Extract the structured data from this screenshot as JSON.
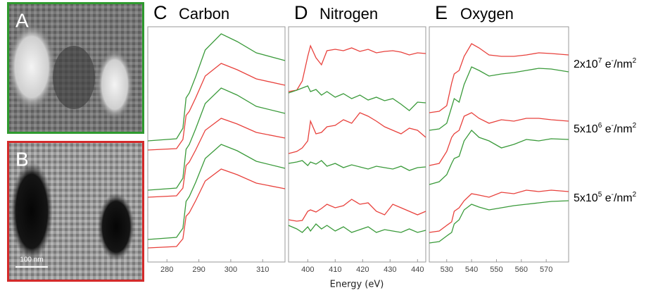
{
  "images": [
    {
      "label": "A",
      "color": "#2e9a2e"
    },
    {
      "label": "B",
      "color": "#d42a2a",
      "scale_bar": "100 nm"
    }
  ],
  "x_label": "Energy (eV)",
  "dose_labels": [
    [
      {
        "text": "2x10"
      },
      {
        "text": "7",
        "sup": true
      },
      {
        "text": " e"
      },
      {
        "text": "-",
        "sup": true
      },
      {
        "text": "/nm"
      },
      {
        "text": "2",
        "sup": true
      }
    ],
    [
      {
        "text": "5x10"
      },
      {
        "text": "6",
        "sup": true
      },
      {
        "text": " e"
      },
      {
        "text": "-",
        "sup": true
      },
      {
        "text": "/nm"
      },
      {
        "text": "2",
        "sup": true
      }
    ],
    [
      {
        "text": "5x10"
      },
      {
        "text": "5",
        "sup": true
      },
      {
        "text": " e"
      },
      {
        "text": "-",
        "sup": true
      },
      {
        "text": "/nm"
      },
      {
        "text": "2",
        "sup": true
      }
    ]
  ],
  "chart_data": [
    {
      "type": "line",
      "letter": "C",
      "title": "Carbon",
      "xlim": [
        274,
        317
      ],
      "xticks": [
        280,
        290,
        300,
        310
      ],
      "ylim": [
        0,
        33.4
      ],
      "x": [
        274,
        283,
        285,
        286,
        287,
        289,
        292,
        297,
        302,
        308,
        317
      ],
      "series": [
        {
          "color": "#3a9a3a",
          "values": [
            17.2,
            17.5,
            19,
            23.3,
            24,
            26.3,
            30.1,
            32.4,
            31.3,
            29.7,
            28.6
          ]
        },
        {
          "color": "#e8413c",
          "values": [
            15.9,
            16.1,
            17.4,
            20.8,
            21.4,
            23.3,
            26.4,
            28.2,
            27.3,
            26,
            25.1
          ]
        },
        {
          "color": "#3a9a3a",
          "values": [
            10.2,
            10.5,
            11.9,
            16,
            16.7,
            18.9,
            22.5,
            24.7,
            23.7,
            22.1,
            21.1
          ]
        },
        {
          "color": "#e8413c",
          "values": [
            9.2,
            9.4,
            10.5,
            13.7,
            14.2,
            15.9,
            18.7,
            20.4,
            19.6,
            18.4,
            17.6
          ]
        },
        {
          "color": "#3a9a3a",
          "values": [
            3.2,
            3.5,
            4.8,
            8.6,
            9.3,
            11.3,
            14.7,
            16.7,
            15.8,
            14.3,
            13.3
          ]
        },
        {
          "color": "#e8413c",
          "values": [
            2,
            2.2,
            3.3,
            6.5,
            7,
            8.7,
            11.5,
            13.2,
            12.4,
            11.2,
            10.4
          ]
        }
      ]
    },
    {
      "type": "line",
      "letter": "D",
      "title": "Nitrogen",
      "xlim": [
        393,
        443
      ],
      "xticks": [
        400,
        410,
        420,
        430,
        440
      ],
      "ylim": [
        0,
        33.4
      ],
      "x": [
        393,
        396,
        398,
        400,
        401,
        403,
        405,
        407,
        410,
        413,
        416,
        419,
        422,
        425,
        428,
        431,
        434,
        437,
        440,
        443
      ],
      "series": [
        {
          "color": "#e8413c",
          "values": [
            24.2,
            24.4,
            25.7,
            29.2,
            30.7,
            29,
            28,
            30,
            30.2,
            30,
            30.4,
            29.9,
            30.2,
            29.7,
            29.9,
            30,
            29.8,
            29.4,
            29.7,
            29.6
          ]
        },
        {
          "color": "#3a9a3a",
          "values": [
            24,
            24.4,
            24.7,
            25,
            24.2,
            24.5,
            23.7,
            24.2,
            23.4,
            23.9,
            23.2,
            23.7,
            23,
            23.4,
            22.9,
            23.2,
            22.4,
            21.5,
            22.7,
            22.6
          ]
        },
        {
          "color": "#e8413c",
          "values": [
            15.4,
            15.7,
            16.2,
            17.2,
            20,
            18.2,
            18.4,
            19.2,
            19.4,
            20.2,
            19.7,
            21.2,
            20.7,
            20,
            19.2,
            18.7,
            18.2,
            19,
            18.7,
            17.7
          ]
        },
        {
          "color": "#3a9a3a",
          "values": [
            14,
            14.2,
            14.4,
            13.7,
            14.2,
            13.9,
            14.4,
            13.6,
            14,
            13.4,
            13.8,
            13.5,
            13.2,
            13.6,
            13.4,
            13.2,
            13.6,
            13,
            13.4,
            13.5
          ]
        },
        {
          "color": "#e8413c",
          "values": [
            6,
            5.8,
            5.9,
            7.2,
            7.4,
            7.1,
            7.6,
            8.2,
            7.7,
            8,
            8.9,
            8.2,
            8.4,
            7.2,
            6.7,
            8.2,
            7.7,
            7.2,
            6.7,
            7.2
          ]
        },
        {
          "color": "#3a9a3a",
          "values": [
            5.2,
            4.7,
            4.2,
            5,
            4.4,
            5.4,
            4.7,
            5.2,
            4.4,
            5,
            4.2,
            4.6,
            5,
            4.2,
            4.6,
            4.4,
            4.2,
            4.7,
            4.2,
            4.5
          ]
        }
      ]
    },
    {
      "type": "line",
      "letter": "E",
      "title": "Oxygen",
      "xlim": [
        523,
        579
      ],
      "xticks": [
        530,
        540,
        550,
        560,
        570
      ],
      "ylim": [
        0,
        33.4
      ],
      "x": [
        523,
        527,
        530,
        532,
        533,
        535,
        537,
        540,
        543,
        547,
        552,
        557,
        562,
        567,
        572,
        579
      ],
      "series": [
        {
          "color": "#e8413c",
          "values": [
            21.2,
            21.4,
            22.2,
            25.4,
            26.7,
            27.2,
            29.2,
            31,
            30.4,
            29.4,
            29.2,
            29.2,
            29.4,
            29.7,
            29.6,
            29.4
          ]
        },
        {
          "color": "#3a9a3a",
          "values": [
            18.7,
            18.9,
            19.7,
            22,
            23.2,
            22.7,
            25.2,
            27.7,
            27.2,
            26.4,
            26.7,
            26.9,
            27.2,
            27.5,
            27.4,
            27
          ]
        },
        {
          "color": "#e8413c",
          "values": [
            13.7,
            14,
            15.7,
            17.7,
            18.2,
            18.7,
            20.7,
            21.2,
            20.4,
            19.7,
            20.2,
            20,
            20.4,
            20.4,
            20.2,
            20
          ]
        },
        {
          "color": "#3a9a3a",
          "values": [
            11,
            11.4,
            12.4,
            14,
            14.7,
            15,
            17.2,
            18.7,
            17.7,
            17.2,
            16.2,
            16.7,
            17.4,
            17.2,
            17.5,
            17.4
          ]
        },
        {
          "color": "#e8413c",
          "values": [
            4.2,
            4.4,
            5.2,
            5.7,
            7.2,
            7.7,
            8.7,
            9.7,
            9.5,
            9.2,
            9.9,
            9.7,
            10.2,
            10,
            10.2,
            10
          ]
        },
        {
          "color": "#3a9a3a",
          "values": [
            2.7,
            2.9,
            3.7,
            4.2,
            5.4,
            6,
            7.4,
            8.2,
            7.8,
            7.4,
            7.7,
            8,
            8.2,
            8.4,
            8.6,
            8.7
          ]
        }
      ]
    }
  ]
}
